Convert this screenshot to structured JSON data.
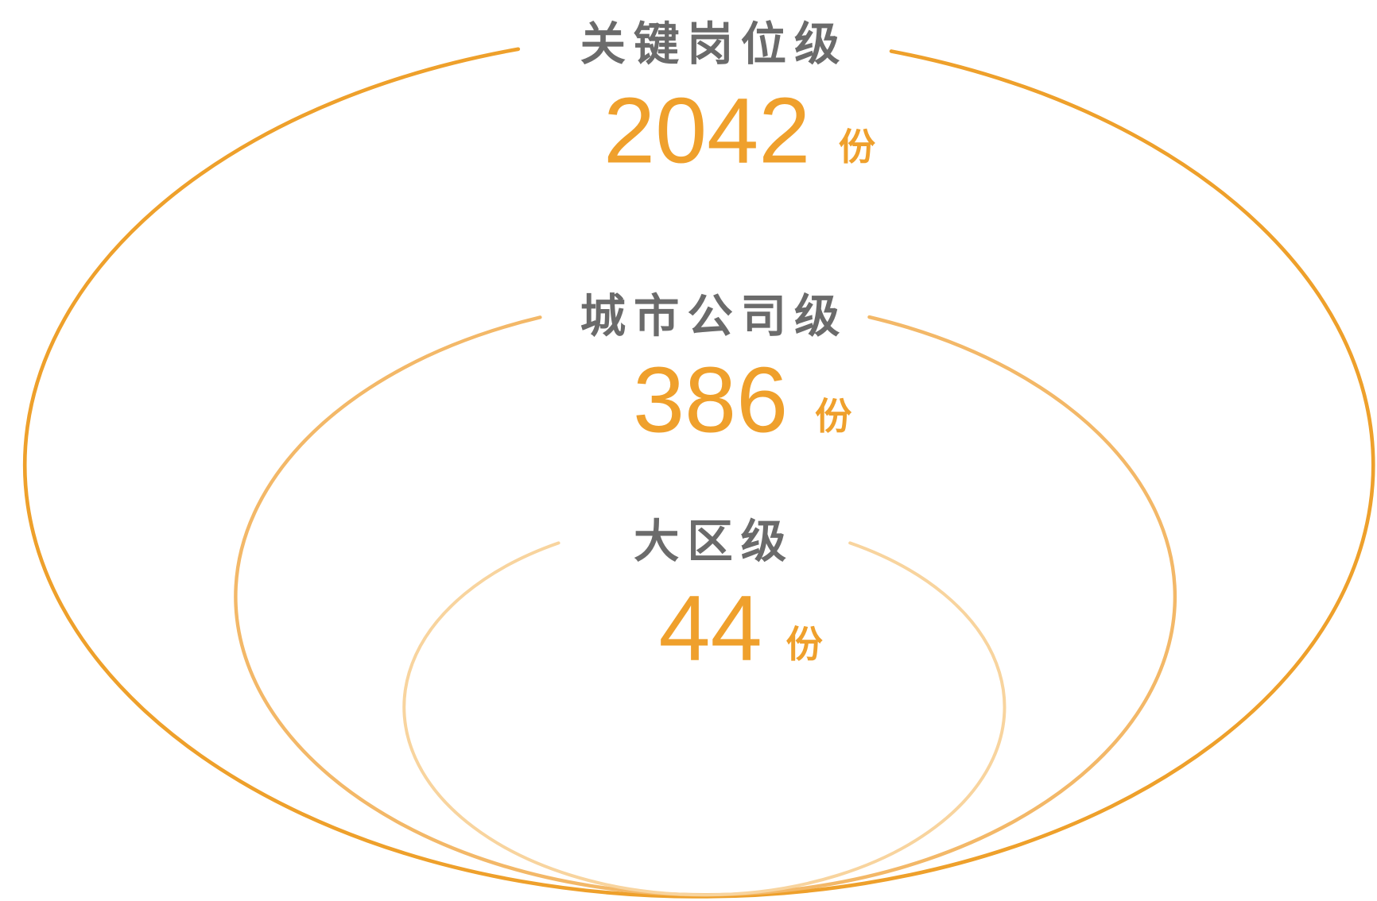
{
  "levels": [
    {
      "label": "关键岗位级",
      "count": 2042,
      "unit": "份"
    },
    {
      "label": "城市公司级",
      "count": 386,
      "unit": "份"
    },
    {
      "label": "大区级",
      "count": 44,
      "unit": "份"
    }
  ],
  "colors": {
    "outer_ring": "#eea02b",
    "middle_ring": "#f3b868",
    "inner_ring": "#f8d49e",
    "count_text": "#efa02c",
    "label_text": "#6b6b6b"
  }
}
